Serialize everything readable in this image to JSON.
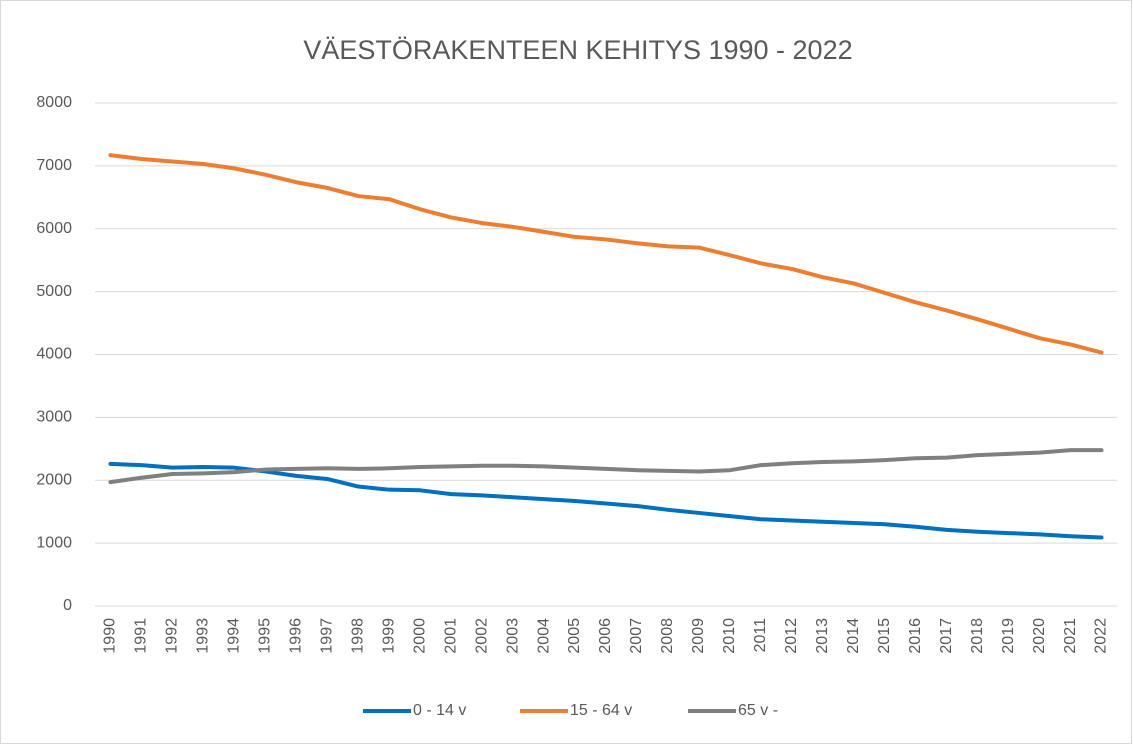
{
  "chart_data": {
    "type": "line",
    "title": "VÄESTÖRAKENTEEN KEHITYS 1990 - 2022",
    "categories": [
      "1990",
      "1991",
      "1992",
      "1993",
      "1994",
      "1995",
      "1996",
      "1997",
      "1998",
      "1999",
      "2000",
      "2001",
      "2002",
      "2003",
      "2004",
      "2005",
      "2006",
      "2007",
      "2008",
      "2009",
      "2010",
      "2011",
      "2012",
      "2013",
      "2014",
      "2015",
      "2016",
      "2017",
      "2018",
      "2019",
      "2020",
      "2021",
      "2022"
    ],
    "series": [
      {
        "name": "0 - 14 v",
        "color": "#0070c0",
        "values": [
          2260,
          2240,
          2200,
          2210,
          2200,
          2140,
          2070,
          2020,
          1900,
          1850,
          1840,
          1780,
          1760,
          1730,
          1700,
          1670,
          1630,
          1590,
          1530,
          1480,
          1430,
          1380,
          1360,
          1340,
          1320,
          1300,
          1260,
          1210,
          1180,
          1160,
          1140,
          1110,
          1090
        ]
      },
      {
        "name": "15 - 64 v",
        "color": "#ed7d31",
        "values": [
          7170,
          7110,
          7070,
          7030,
          6960,
          6860,
          6740,
          6650,
          6520,
          6470,
          6310,
          6180,
          6090,
          6030,
          5950,
          5870,
          5830,
          5770,
          5720,
          5700,
          5580,
          5450,
          5360,
          5230,
          5130,
          4980,
          4830,
          4700,
          4560,
          4410,
          4260,
          4160,
          4030
        ]
      },
      {
        "name": "65 v -",
        "color": "#808080",
        "values": [
          1970,
          2040,
          2100,
          2110,
          2130,
          2170,
          2180,
          2190,
          2180,
          2190,
          2210,
          2220,
          2230,
          2230,
          2220,
          2200,
          2180,
          2160,
          2150,
          2140,
          2160,
          2240,
          2270,
          2290,
          2300,
          2320,
          2350,
          2360,
          2400,
          2420,
          2440,
          2480,
          2480
        ]
      }
    ],
    "ylim": [
      0,
      8000
    ],
    "yticks": [
      0,
      1000,
      2000,
      3000,
      4000,
      5000,
      6000,
      7000,
      8000
    ],
    "grid": true,
    "legend": "bottom"
  }
}
